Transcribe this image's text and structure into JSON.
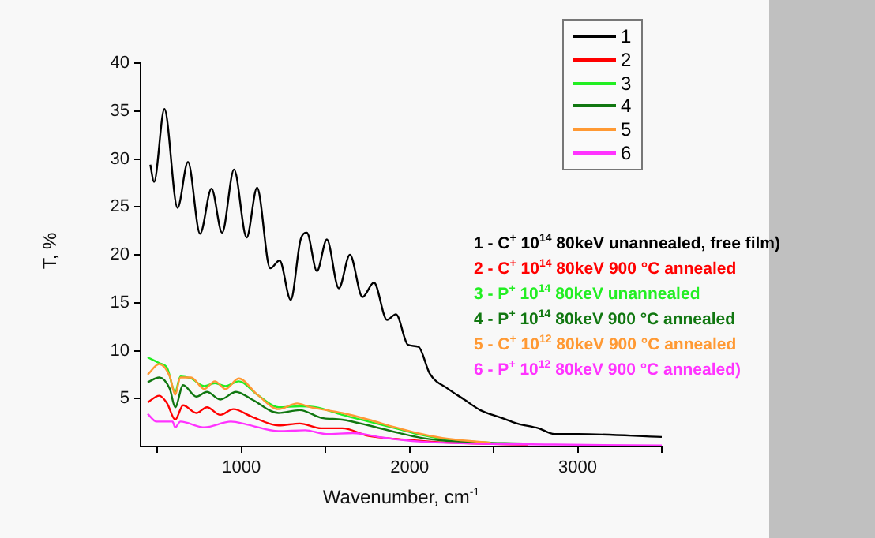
{
  "chart_data": {
    "type": "line",
    "xlabel": "Wavenumber, cm$^{-1}$",
    "ylabel": "T, %",
    "xlim": [
      400,
      3500
    ],
    "xticks": [
      {
        "value": 500,
        "label": null
      },
      1000,
      {
        "value": 1500,
        "label": null
      },
      2000,
      {
        "value": 2500,
        "label": null
      },
      3000,
      {
        "value": 3500,
        "label": null
      }
    ],
    "ylim": [
      0,
      40
    ],
    "yticks": [
      5,
      10,
      15,
      20,
      25,
      30,
      35,
      40
    ],
    "grid": false,
    "legend": "top right",
    "marker": "none",
    "line_style": "solid",
    "series": [
      {
        "name": "1",
        "color": "#000000",
        "x": [
          458,
          480,
          542,
          620,
          682,
          754,
          822,
          885,
          956,
          1031,
          1093,
          1171,
          1227,
          1293,
          1352,
          1389,
          1449,
          1508,
          1579,
          1645,
          1720,
          1788,
          1866,
          1919,
          1991,
          2053,
          2120,
          2230,
          2325,
          2420,
          2546,
          2640,
          2767,
          2861,
          3000,
          3500
        ],
        "values": [
          29.4,
          27.6,
          35.2,
          24.9,
          29.7,
          22.2,
          26.9,
          22.3,
          28.9,
          21.8,
          27.0,
          18.6,
          19.4,
          15.3,
          21.6,
          22.3,
          18.3,
          21.6,
          16.5,
          20.0,
          15.6,
          17.1,
          13.2,
          13.8,
          10.6,
          10.4,
          7.6,
          6.0,
          4.9,
          3.8,
          3.0,
          2.4,
          1.9,
          1.3,
          1.3,
          1.0
        ]
      },
      {
        "name": "2",
        "color": "#ff0000",
        "x": [
          442,
          511,
          558,
          606,
          653,
          732,
          795,
          874,
          952,
          1063,
          1221,
          1347,
          1473,
          1599,
          1757,
          1915,
          2230,
          2703
        ],
        "values": [
          4.6,
          5.3,
          4.5,
          2.8,
          4.3,
          3.5,
          4.1,
          3.3,
          3.9,
          3.1,
          2.2,
          2.4,
          1.9,
          1.9,
          1.1,
          0.8,
          0.4,
          0.2
        ]
      },
      {
        "name": "3",
        "color": "#22ee22",
        "x": [
          442,
          511,
          558,
          606,
          637,
          700,
          779,
          842,
          905,
          984,
          1095,
          1221,
          1347,
          1442,
          1599,
          1757,
          1915,
          2073,
          2230,
          2483
        ],
        "values": [
          9.3,
          8.7,
          8.2,
          5.7,
          7.3,
          7.1,
          6.3,
          6.6,
          6.3,
          6.8,
          5.4,
          4.1,
          4.2,
          4.1,
          3.3,
          2.6,
          1.9,
          1.2,
          0.7,
          0.4
        ]
      },
      {
        "name": "4",
        "color": "#117711",
        "x": [
          442,
          511,
          574,
          606,
          653,
          732,
          795,
          874,
          968,
          1063,
          1221,
          1347,
          1473,
          1599,
          1757,
          1915,
          2073,
          2293,
          2703
        ],
        "values": [
          6.7,
          7.2,
          6.0,
          4.1,
          6.4,
          5.2,
          5.7,
          4.9,
          5.7,
          4.9,
          3.5,
          3.8,
          3.0,
          2.8,
          2.2,
          1.5,
          0.9,
          0.5,
          0.3
        ]
      },
      {
        "name": "5",
        "color": "#ff9933",
        "x": [
          442,
          511,
          574,
          606,
          637,
          700,
          779,
          842,
          905,
          984,
          1095,
          1221,
          1331,
          1410,
          1599,
          1757,
          1915,
          2073,
          2230,
          2483
        ],
        "values": [
          7.5,
          8.6,
          7.3,
          5.4,
          7.2,
          7.2,
          6.0,
          6.8,
          6.0,
          7.1,
          5.4,
          3.9,
          4.5,
          4.1,
          3.5,
          2.8,
          2.0,
          1.3,
          0.8,
          0.4
        ]
      },
      {
        "name": "6",
        "color": "#ff33ff",
        "x": [
          442,
          495,
          590,
          606,
          637,
          779,
          937,
          1032,
          1221,
          1379,
          1505,
          1662,
          1852,
          2073,
          2388,
          2861,
          3500
        ],
        "values": [
          3.4,
          2.6,
          2.6,
          2.0,
          2.6,
          2.0,
          2.6,
          2.3,
          1.6,
          1.7,
          1.3,
          1.4,
          0.9,
          0.5,
          0.3,
          0.2,
          0.1
        ]
      }
    ],
    "annotations": [
      "1 - C$^{+}$ 10$^{14}$ 80keV unannealed, free film)",
      "2 - C$^{+}$ 10$^{14}$ 80keV 900 °C annealed",
      "3 - P$^{+}$ 10$^{14}$ 80keV unannealed",
      "4 - P$^{+}$ 10$^{14}$ 80keV 900 °C annealed",
      "5 - C$^{+}$ 10$^{12}$ 80keV 900 °C annealed",
      "6 - P$^{+}$ 10$^{12}$ 80keV 900 °C annealed)"
    ]
  }
}
